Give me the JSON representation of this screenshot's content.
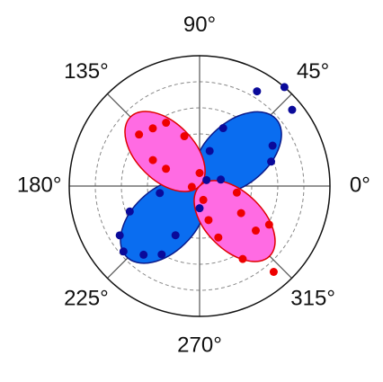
{
  "chart_data": {
    "type": "polar",
    "rlim": [
      0,
      1
    ],
    "rticks": [
      0.2,
      0.4,
      0.6,
      0.8
    ],
    "thetaticks": [
      {
        "value": 0,
        "label": "0°"
      },
      {
        "value": 45,
        "label": "45°"
      },
      {
        "value": 90,
        "label": "90°"
      },
      {
        "value": 135,
        "label": "135°"
      },
      {
        "value": 180,
        "label": "180°"
      },
      {
        "value": 225,
        "label": "225°"
      },
      {
        "value": 270,
        "label": "270°"
      },
      {
        "value": 315,
        "label": "315°"
      }
    ],
    "grid": true,
    "lobes": [
      {
        "fill": "#0a6df0",
        "edge": "#0b1a8a",
        "theta": [
          41,
          224
        ],
        "r": [
          0.78,
          0.78
        ],
        "width": [
          0.48,
          0.48
        ]
      },
      {
        "fill": "#ff6be3",
        "edge": "#e00000",
        "theta": [
          135,
          315
        ],
        "r": [
          0.75,
          0.76
        ],
        "width": [
          0.44,
          0.44
        ]
      }
    ],
    "series": [
      {
        "color": "#0a0a9a",
        "theta": [
          58.8,
          49.4,
          39.5,
          67.9,
          29,
          18.9,
          74,
          17,
          41,
          190,
          200,
          211.7,
          220.7,
          230.8,
          241,
          243.9,
          270
        ],
        "r": [
          0.85,
          1.0,
          0.92,
          0.48,
          0.64,
          0.58,
          0.28,
          0.17,
          0.07,
          0.31,
          0.57,
          0.72,
          0.77,
          0.68,
          0.6,
          0.42,
          0.17
        ]
      },
      {
        "color": "#ee0000",
        "theta": [
          139.6,
          129,
          117.9,
          107,
          150.9,
          152.8,
          90,
          186,
          285,
          284.7,
          350,
          326.9,
          290,
          321.6,
          331,
          300.6,
          310.8
        ],
        "r": [
          0.61,
          0.57,
          0.55,
          0.4,
          0.41,
          0.29,
          0.1,
          0.06,
          0.11,
          0.27,
          0.29,
          0.38,
          0.42,
          0.55,
          0.61,
          0.65,
          0.87
        ]
      }
    ]
  }
}
